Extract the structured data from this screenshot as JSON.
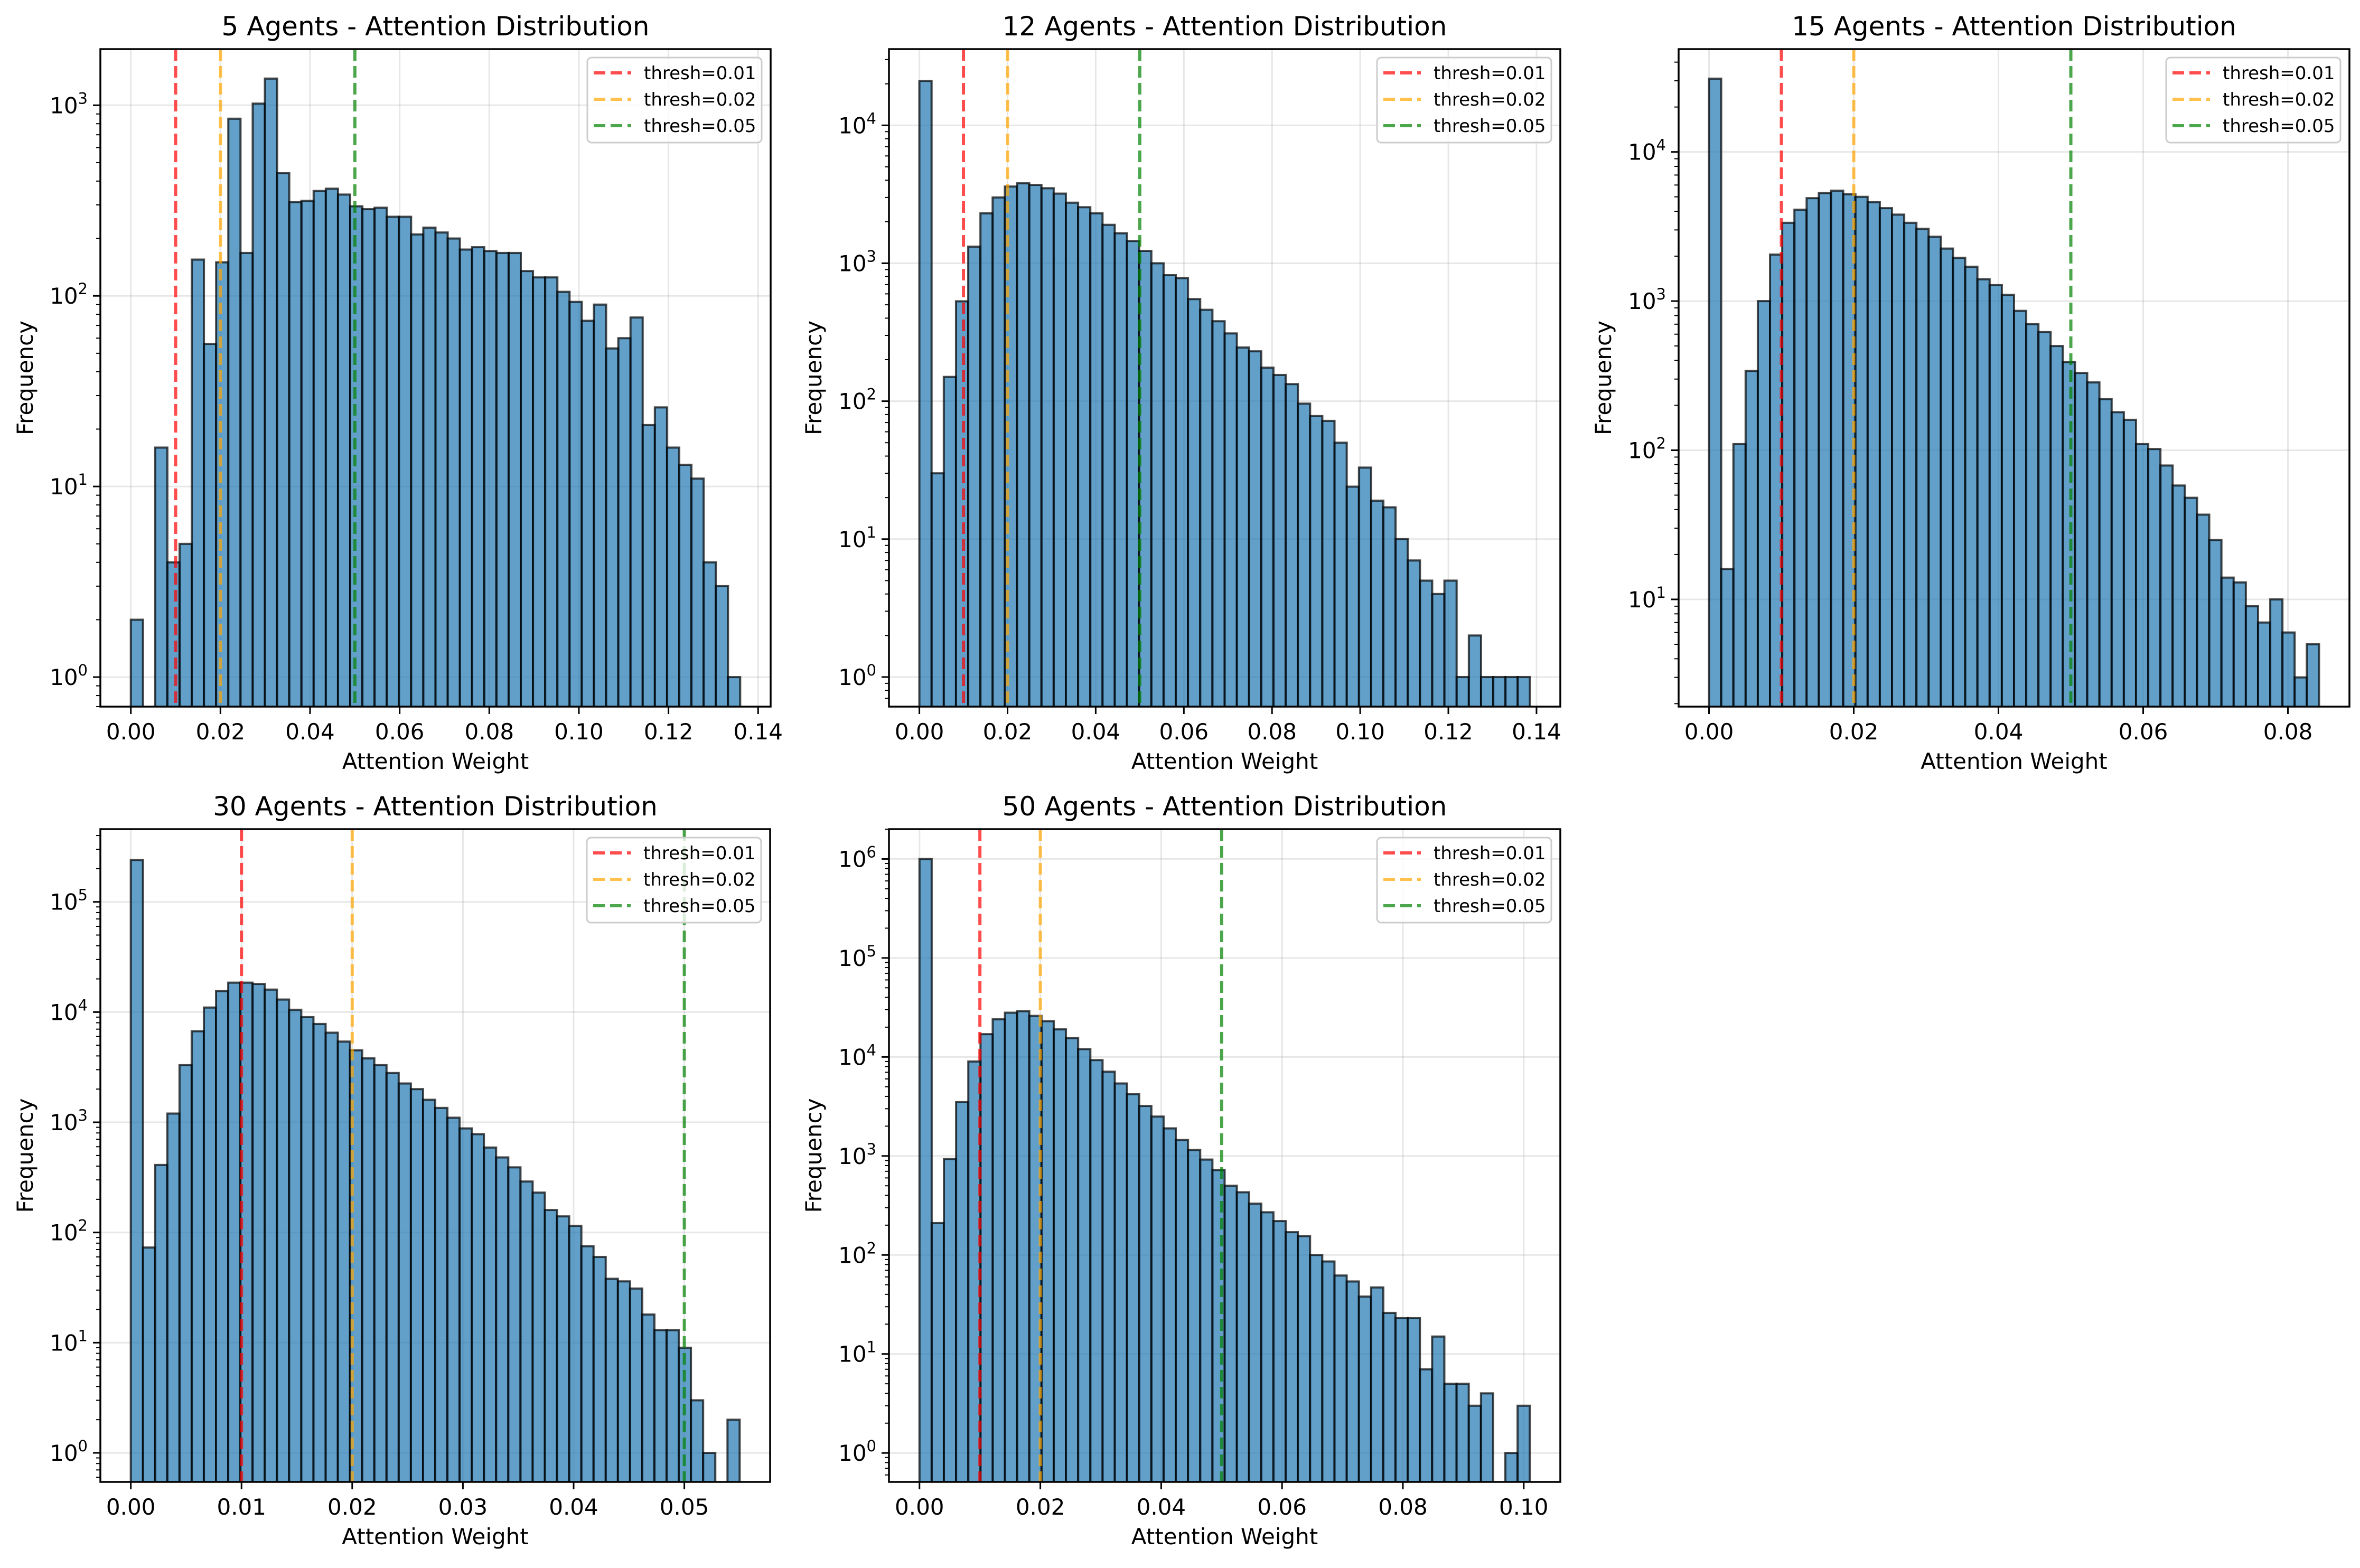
{
  "chart_data": [
    {
      "type": "bar",
      "title": "5 Agents - Attention Distribution",
      "xlabel": "Attention Weight",
      "ylabel": "Frequency",
      "yscale": "log",
      "bin_range": [
        0,
        0.136
      ],
      "xlim": [
        -0.0068,
        0.1428
      ],
      "ylim": [
        0.7,
        1970
      ],
      "xticks": [
        "0.00",
        "0.02",
        "0.04",
        "0.06",
        "0.08",
        "0.10",
        "0.12",
        "0.14"
      ],
      "yticks": [
        1,
        10,
        100,
        1000
      ],
      "grid": true,
      "legend": "top-right",
      "values": [
        2,
        0,
        16,
        4,
        5,
        155,
        56,
        150,
        850,
        168,
        1020,
        1380,
        440,
        310,
        315,
        355,
        365,
        340,
        295,
        285,
        290,
        260,
        260,
        210,
        228,
        215,
        200,
        175,
        180,
        172,
        168,
        168,
        135,
        125,
        125,
        105,
        93,
        74,
        90,
        53,
        60,
        77,
        21,
        26,
        16,
        13,
        11,
        4,
        3,
        1
      ],
      "thresholds": [
        {
          "label": "thresh=0.01",
          "value": 0.01,
          "color": "#ff0000"
        },
        {
          "label": "thresh=0.02",
          "value": 0.02,
          "color": "#ffa500"
        },
        {
          "label": "thresh=0.05",
          "value": 0.05,
          "color": "#008000"
        }
      ]
    },
    {
      "type": "bar",
      "title": "12 Agents - Attention Distribution",
      "xlabel": "Attention Weight",
      "ylabel": "Frequency",
      "yscale": "log",
      "bin_range": [
        0,
        0.1385
      ],
      "xlim": [
        -0.0069,
        0.1454
      ],
      "ylim": [
        0.61,
        35700
      ],
      "xticks": [
        "0.00",
        "0.02",
        "0.04",
        "0.06",
        "0.08",
        "0.10",
        "0.12",
        "0.14"
      ],
      "yticks": [
        1,
        10,
        100,
        1000,
        10000
      ],
      "grid": true,
      "legend": "top-right",
      "values": [
        21000,
        30,
        150,
        530,
        1320,
        2300,
        3000,
        3600,
        3800,
        3700,
        3500,
        3200,
        2750,
        2550,
        2300,
        1900,
        1650,
        1450,
        1230,
        1000,
        820,
        780,
        550,
        460,
        380,
        310,
        245,
        230,
        175,
        155,
        133,
        96,
        78,
        72,
        50,
        24,
        33,
        19,
        17,
        10,
        7,
        5,
        4,
        5,
        1,
        2,
        1,
        1,
        1,
        1
      ],
      "thresholds": [
        {
          "label": "thresh=0.01",
          "value": 0.01,
          "color": "#ff0000"
        },
        {
          "label": "thresh=0.02",
          "value": 0.02,
          "color": "#ffa500"
        },
        {
          "label": "thresh=0.05",
          "value": 0.05,
          "color": "#008000"
        }
      ]
    },
    {
      "type": "bar",
      "title": "15 Agents - Attention Distribution",
      "xlabel": "Attention Weight",
      "ylabel": "Frequency",
      "yscale": "log",
      "bin_range": [
        0,
        0.0843
      ],
      "xlim": [
        -0.0042,
        0.0885
      ],
      "ylim": [
        1.91,
        48900
      ],
      "xticks": [
        "0.00",
        "0.02",
        "0.04",
        "0.06",
        "0.08"
      ],
      "yticks": [
        10,
        100,
        1000,
        10000
      ],
      "grid": true,
      "legend": "top-right",
      "values": [
        31000,
        16,
        110,
        340,
        1000,
        2050,
        3350,
        4100,
        4900,
        5300,
        5500,
        5200,
        5000,
        4600,
        4200,
        3800,
        3350,
        3050,
        2700,
        2250,
        1950,
        1700,
        1400,
        1280,
        1100,
        860,
        700,
        620,
        500,
        390,
        330,
        285,
        220,
        180,
        160,
        110,
        102,
        79,
        58,
        48,
        37,
        25,
        14,
        13,
        9,
        7,
        10,
        6,
        3,
        5
      ],
      "thresholds": [
        {
          "label": "thresh=0.01",
          "value": 0.01,
          "color": "#ff0000"
        },
        {
          "label": "thresh=0.02",
          "value": 0.02,
          "color": "#ffa500"
        },
        {
          "label": "thresh=0.05",
          "value": 0.05,
          "color": "#008000"
        }
      ]
    },
    {
      "type": "bar",
      "title": "30 Agents - Attention Distribution",
      "xlabel": "Attention Weight",
      "ylabel": "Frequency",
      "yscale": "log",
      "bin_range": [
        0,
        0.055
      ],
      "xlim": [
        -0.00275,
        0.05775
      ],
      "ylim": [
        0.545,
        457000
      ],
      "xticks": [
        "0.00",
        "0.01",
        "0.02",
        "0.03",
        "0.04",
        "0.05"
      ],
      "yticks": [
        1,
        10,
        100,
        1000,
        10000,
        100000
      ],
      "grid": true,
      "legend": "top-right",
      "values": [
        240000,
        73,
        410,
        1200,
        3300,
        6700,
        11000,
        15500,
        18500,
        18500,
        18000,
        16000,
        13000,
        10500,
        9000,
        7800,
        6500,
        5400,
        4500,
        3800,
        3300,
        2800,
        2250,
        2000,
        1600,
        1350,
        1100,
        880,
        780,
        590,
        480,
        390,
        290,
        230,
        160,
        140,
        115,
        75,
        60,
        38,
        36,
        31,
        18,
        13,
        13,
        9,
        3,
        1,
        0,
        2
      ],
      "thresholds": [
        {
          "label": "thresh=0.01",
          "value": 0.01,
          "color": "#ff0000"
        },
        {
          "label": "thresh=0.02",
          "value": 0.02,
          "color": "#ffa500"
        },
        {
          "label": "thresh=0.05",
          "value": 0.05,
          "color": "#008000"
        }
      ]
    },
    {
      "type": "bar",
      "title": "50 Agents - Attention Distribution",
      "xlabel": "Attention Weight",
      "ylabel": "Frequency",
      "yscale": "log",
      "bin_range": [
        0,
        0.101
      ],
      "xlim": [
        -0.00505,
        0.10605
      ],
      "ylim": [
        0.51,
        2000000
      ],
      "xticks": [
        "0.00",
        "0.02",
        "0.04",
        "0.06",
        "0.08",
        "0.10"
      ],
      "yticks": [
        1,
        10,
        100,
        1000,
        10000,
        100000,
        1000000
      ],
      "grid": true,
      "legend": "top-right",
      "values": [
        1000000,
        210,
        930,
        3500,
        9000,
        17000,
        24000,
        28000,
        29000,
        26000,
        23000,
        19000,
        15500,
        12000,
        9300,
        7100,
        5400,
        4200,
        3200,
        2500,
        1900,
        1450,
        1150,
        920,
        720,
        500,
        430,
        330,
        270,
        220,
        170,
        155,
        100,
        86,
        62,
        54,
        38,
        47,
        26,
        23,
        23,
        7,
        15,
        5,
        5,
        3,
        4,
        0,
        1,
        3
      ],
      "thresholds": [
        {
          "label": "thresh=0.01",
          "value": 0.01,
          "color": "#ff0000"
        },
        {
          "label": "thresh=0.02",
          "value": 0.02,
          "color": "#ffa500"
        },
        {
          "label": "thresh=0.05",
          "value": 0.05,
          "color": "#008000"
        }
      ]
    }
  ],
  "colors": {
    "bar": "#1f77b4",
    "bar_edge": "#000000",
    "grid": "#b0b0b0"
  }
}
